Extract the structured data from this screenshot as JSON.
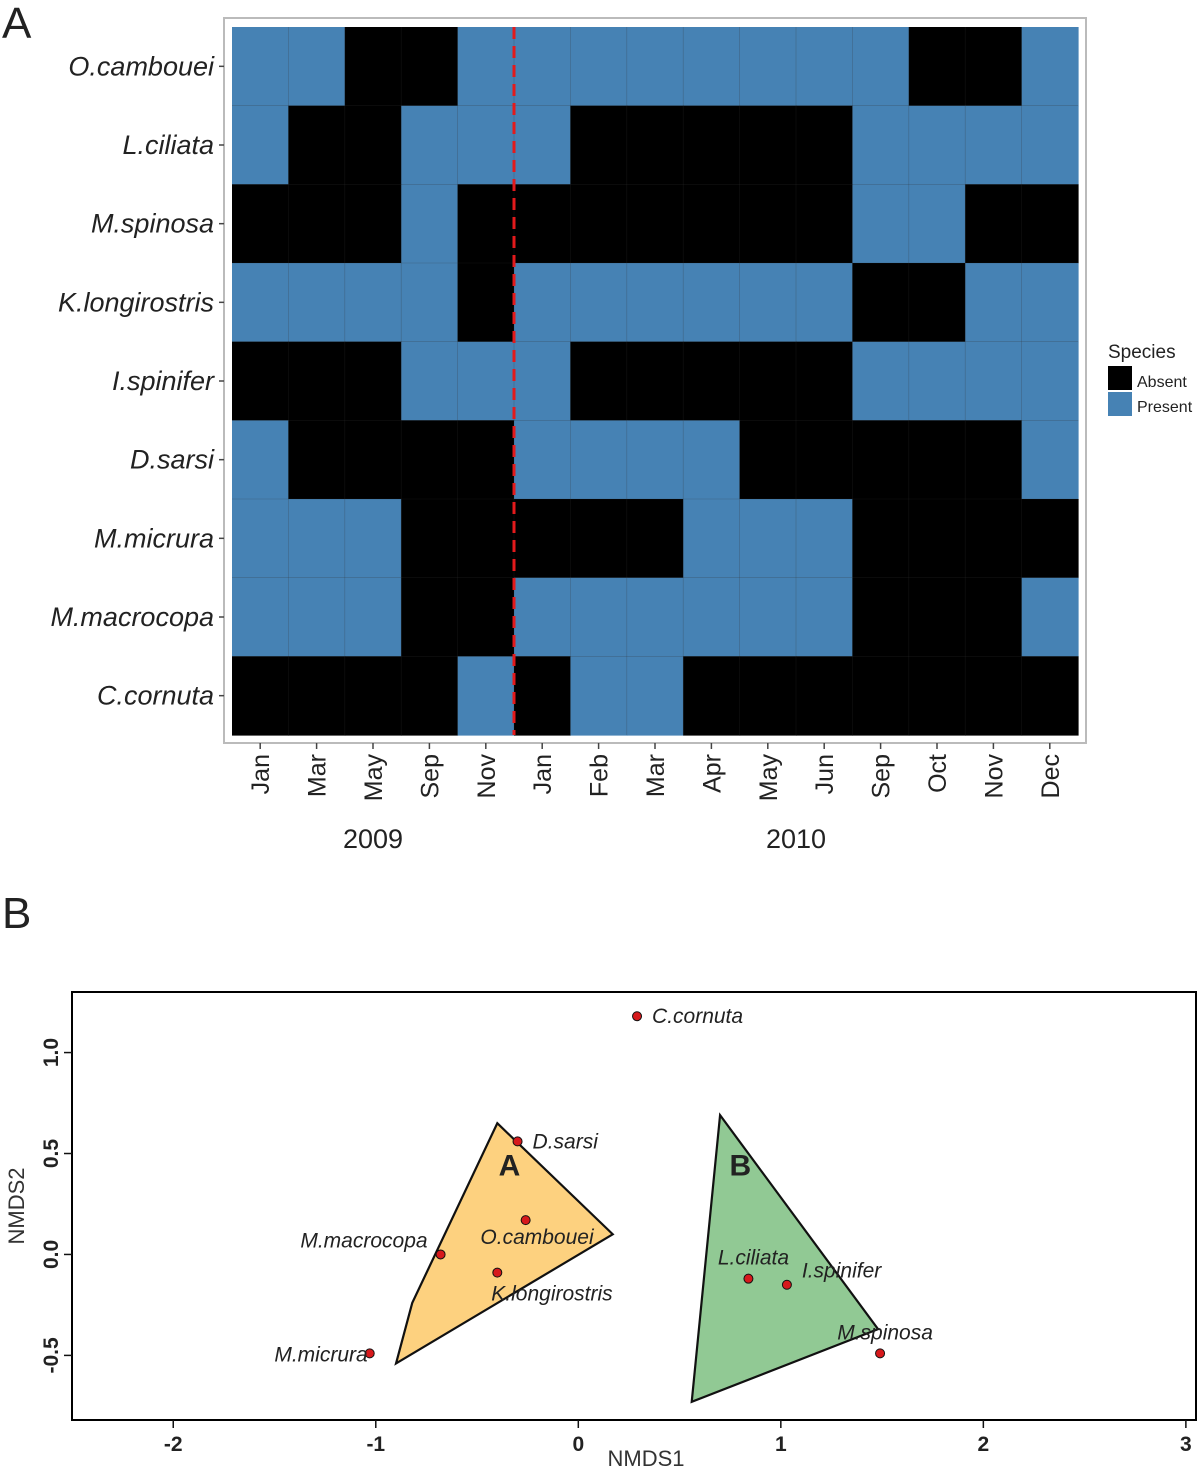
{
  "chart_data": [
    {
      "type": "heatmap",
      "panel_label": "A",
      "species": [
        "O.cambouei",
        "L.ciliata",
        "M.spinosa",
        "K.longirostris",
        "I.spinifer",
        "D.sarsi",
        "M.micrura",
        "M.macrocopa",
        "C.cornuta"
      ],
      "months": [
        "Jan",
        "Mar",
        "May",
        "Sep",
        "Nov",
        "Jan",
        "Feb",
        "Mar",
        "Apr",
        "May",
        "Jun",
        "Sep",
        "Oct",
        "Nov",
        "Dec"
      ],
      "years": [
        {
          "label": "2009",
          "first_col": 0,
          "last_col": 4
        },
        {
          "label": "2010",
          "first_col": 5,
          "last_col": 14
        }
      ],
      "year_divider_after_col": 4,
      "legend": {
        "title": "Species",
        "entries": [
          {
            "label": "Absent",
            "value": 0,
            "color": "#000000"
          },
          {
            "label": "Present",
            "value": 1,
            "color": "#4682b4"
          }
        ]
      },
      "values": [
        [
          1,
          1,
          0,
          0,
          1,
          1,
          1,
          1,
          1,
          1,
          1,
          1,
          0,
          0,
          1
        ],
        [
          1,
          0,
          0,
          1,
          1,
          1,
          0,
          0,
          0,
          0,
          0,
          1,
          1,
          1,
          1
        ],
        [
          0,
          0,
          0,
          1,
          0,
          0,
          0,
          0,
          0,
          0,
          0,
          1,
          1,
          0,
          0
        ],
        [
          1,
          1,
          1,
          1,
          0,
          1,
          1,
          1,
          1,
          1,
          1,
          0,
          0,
          1,
          1
        ],
        [
          0,
          0,
          0,
          1,
          1,
          1,
          0,
          0,
          0,
          0,
          0,
          1,
          1,
          1,
          1
        ],
        [
          1,
          0,
          0,
          0,
          0,
          1,
          1,
          1,
          1,
          0,
          0,
          0,
          0,
          0,
          1
        ],
        [
          1,
          1,
          1,
          0,
          0,
          0,
          0,
          0,
          1,
          1,
          1,
          0,
          0,
          0,
          0
        ],
        [
          1,
          1,
          1,
          0,
          0,
          1,
          1,
          1,
          1,
          1,
          1,
          0,
          0,
          0,
          1
        ],
        [
          0,
          0,
          0,
          0,
          1,
          0,
          1,
          1,
          0,
          0,
          0,
          0,
          0,
          0,
          0
        ]
      ],
      "colors": {
        "divider": "#e31a1c",
        "grid": "#333333"
      }
    },
    {
      "type": "scatter",
      "panel_label": "B",
      "xlabel": "NMDS1",
      "ylabel": "NMDS2",
      "xlim": [
        -2.5,
        3.05
      ],
      "ylim": [
        -0.82,
        1.3
      ],
      "xticks": [
        -2,
        -1,
        0,
        1,
        2,
        3
      ],
      "yticks": [
        -0.5,
        0.0,
        0.5,
        1.0
      ],
      "ytick_labels": [
        "-0.5",
        "0.0",
        "0.5",
        "1.0"
      ],
      "points": [
        {
          "name": "C.cornuta",
          "x": 0.29,
          "y": 1.18,
          "label_pos": "right"
        },
        {
          "name": "D.sarsi",
          "x": -0.3,
          "y": 0.56,
          "label_pos": "right"
        },
        {
          "name": "O.cambouei",
          "x": -0.26,
          "y": 0.17,
          "label_pos": "below-left"
        },
        {
          "name": "M.macrocopa",
          "x": -0.68,
          "y": 0.0,
          "label_pos": "left-above"
        },
        {
          "name": "K.longirostris",
          "x": -0.4,
          "y": -0.09,
          "label_pos": "below-right"
        },
        {
          "name": "M.micrura",
          "x": -1.03,
          "y": -0.49,
          "label_pos": "left"
        },
        {
          "name": "L.ciliata",
          "x": 0.84,
          "y": -0.12,
          "label_pos": "above"
        },
        {
          "name": "I.spinifer",
          "x": 1.03,
          "y": -0.15,
          "label_pos": "above-right"
        },
        {
          "name": "M.spinosa",
          "x": 1.49,
          "y": -0.49,
          "label_pos": "above"
        }
      ],
      "groups": [
        {
          "label": "A",
          "fill": "#fdd17f",
          "hull": [
            [
              -0.4,
              0.65
            ],
            [
              0.17,
              0.1
            ],
            [
              -0.9,
              -0.54
            ],
            [
              -0.82,
              -0.24
            ]
          ],
          "label_at": [
            -0.34,
            0.39
          ]
        },
        {
          "label": "B",
          "fill": "#91c994",
          "hull": [
            [
              0.7,
              0.69
            ],
            [
              1.48,
              -0.37
            ],
            [
              0.56,
              -0.73
            ]
          ],
          "label_at": [
            0.8,
            0.39
          ]
        }
      ],
      "colors": {
        "point": "#d7191c"
      }
    }
  ]
}
